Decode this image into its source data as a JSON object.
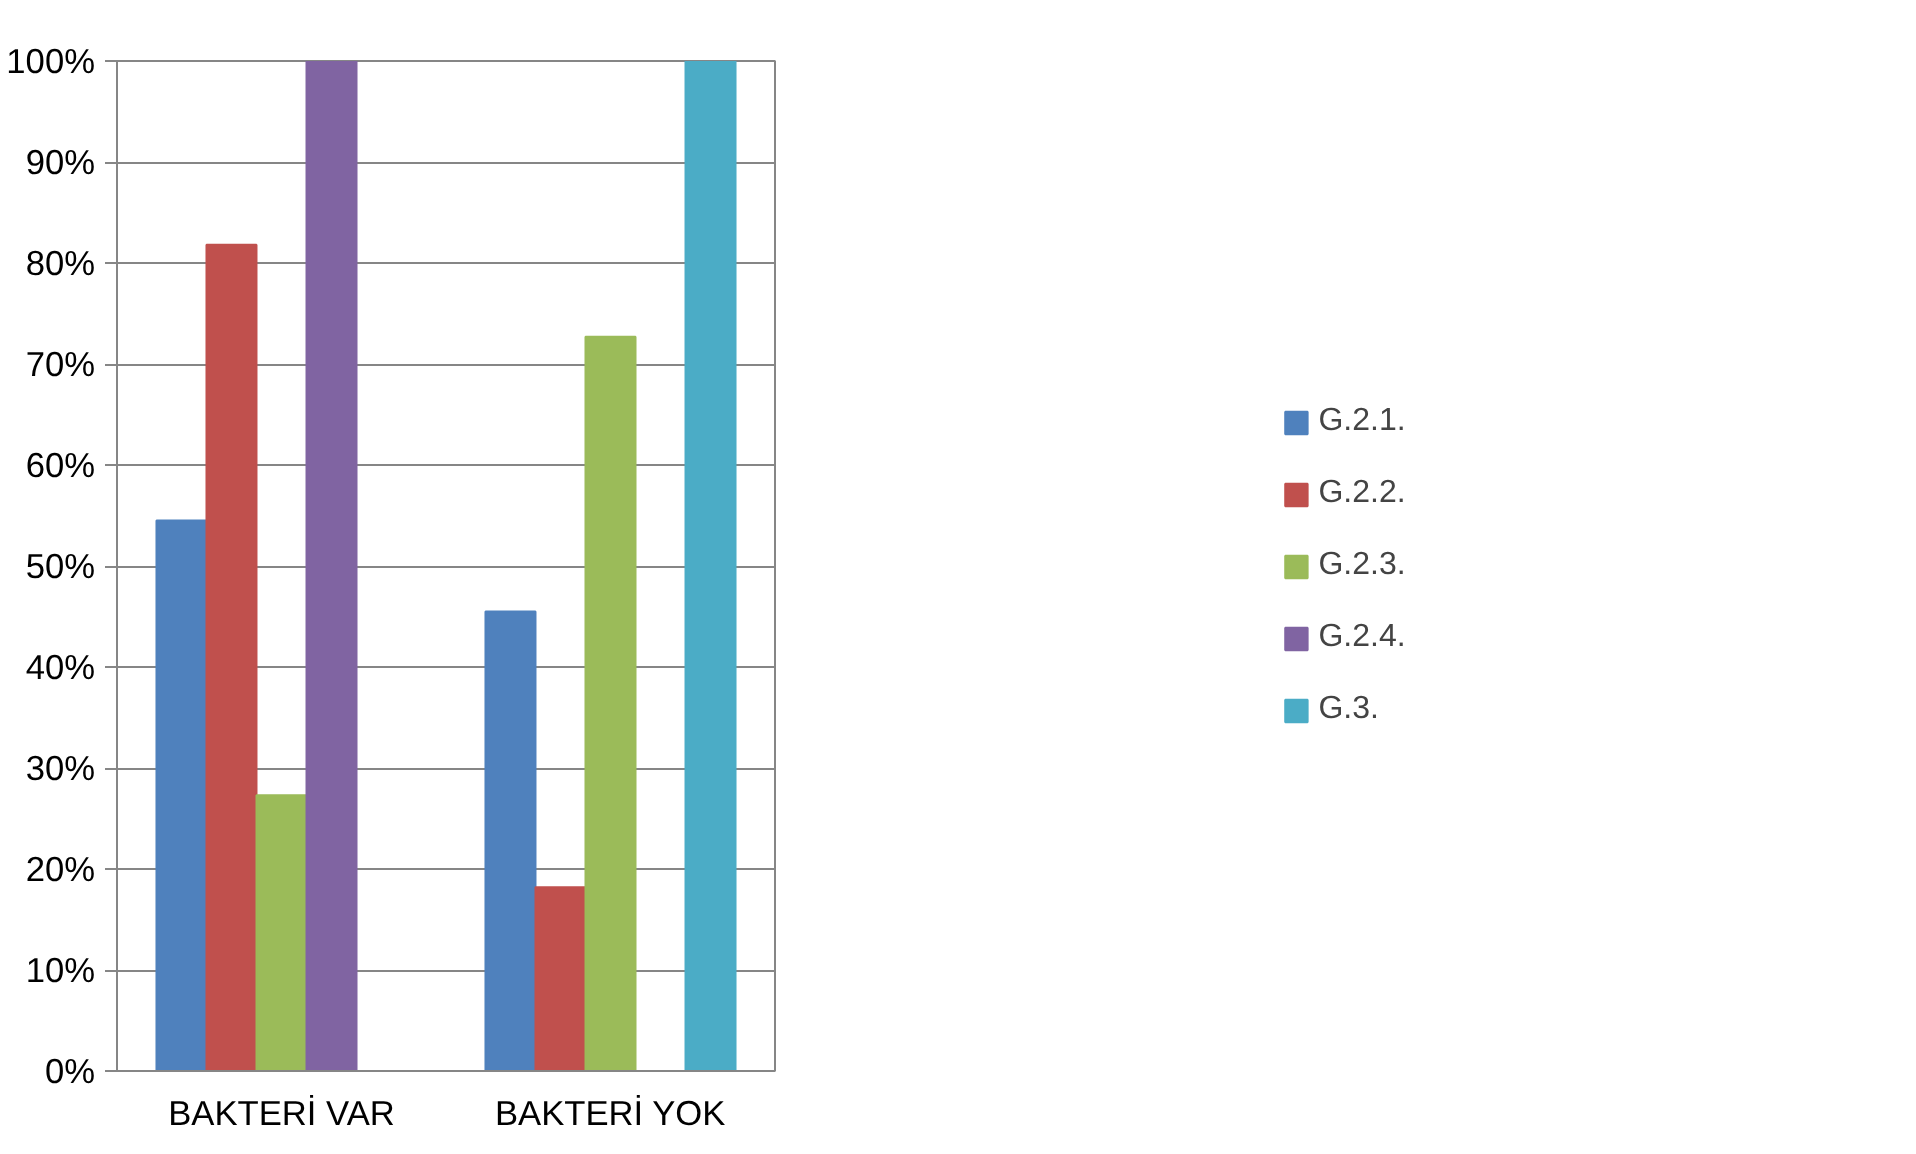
{
  "chart_data": {
    "type": "bar",
    "categories": [
      "BAKTERİ VAR",
      "BAKTERİ YOK"
    ],
    "series": [
      {
        "name": "G.2.1.",
        "color": "#4f81bd",
        "values": [
          54.5,
          45.5
        ]
      },
      {
        "name": "G.2.2.",
        "color": "#c0504d",
        "values": [
          81.8,
          18.2
        ]
      },
      {
        "name": "G.2.3.",
        "color": "#9bbb59",
        "values": [
          27.3,
          72.7
        ]
      },
      {
        "name": "G.2.4.",
        "color": "#8064a2",
        "values": [
          100,
          0
        ]
      },
      {
        "name": "G.3.",
        "color": "#4bacc6",
        "values": [
          0,
          100
        ]
      }
    ],
    "ylim": [
      0,
      100
    ],
    "yticks": [
      {
        "value": 0,
        "label": "0%"
      },
      {
        "value": 10,
        "label": "10%"
      },
      {
        "value": 20,
        "label": "20%"
      },
      {
        "value": 30,
        "label": "30%"
      },
      {
        "value": 40,
        "label": "40%"
      },
      {
        "value": 50,
        "label": "50%"
      },
      {
        "value": 60,
        "label": "60%"
      },
      {
        "value": 70,
        "label": "70%"
      },
      {
        "value": 80,
        "label": "80%"
      },
      {
        "value": 90,
        "label": "90%"
      },
      {
        "value": 100,
        "label": "100%"
      }
    ],
    "grid": "y",
    "legend": "right"
  }
}
